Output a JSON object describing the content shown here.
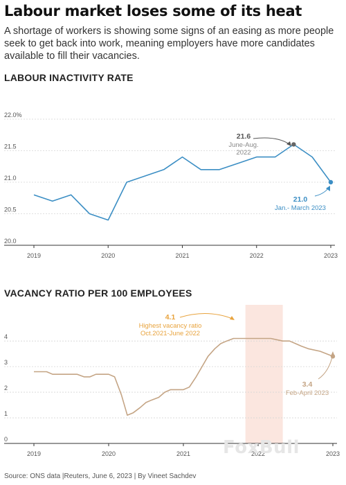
{
  "headline": "Labour market loses some of its heat",
  "dek": "A shortage of workers is showing some signs of an easing as more people seek to get back into work, meaning employers have more candidates available to fill their vacancies.",
  "source": "Source: ONS data |Reuters, June 6, 2023 | By Vineet Sachdev",
  "watermark": "FoxBull",
  "colors": {
    "inactivity_line": "#3b8ec4",
    "vacancy_line": "#c4a484",
    "highlight_band": "#fbe6df",
    "highlight_annotation": "#e8a33d",
    "peak_dot": "#666666"
  },
  "chart_data": [
    {
      "type": "line",
      "title": "LABOUR INACTIVITY RATE",
      "xlabel": "",
      "ylabel": "",
      "x_tick_labels": [
        "2019",
        "2020",
        "2021",
        "2022",
        "2023"
      ],
      "y_tick_labels": [
        "22.0%",
        "21.5",
        "21.0",
        "20.5",
        "20.0"
      ],
      "y_ticks": [
        22.0,
        21.5,
        21.0,
        20.5,
        20.0
      ],
      "ylim": [
        20.0,
        22.0
      ],
      "xlim": [
        2019,
        2023
      ],
      "grid": "horizontal",
      "series": [
        {
          "x": [
            2019.0,
            2019.25,
            2019.5,
            2019.75,
            2020.0,
            2020.25,
            2020.5,
            2020.75,
            2021.0,
            2021.25,
            2021.5,
            2021.75,
            2022.0,
            2022.25,
            2022.5,
            2022.75,
            2023.0
          ],
          "values": [
            20.8,
            20.7,
            20.8,
            20.5,
            20.4,
            21.0,
            21.1,
            21.2,
            21.4,
            21.2,
            21.2,
            21.3,
            21.4,
            21.4,
            21.6,
            21.4,
            21.0
          ]
        }
      ],
      "annotations": [
        {
          "value": "21.6",
          "label_lines": [
            "June-Aug.",
            "2022"
          ],
          "x": 2022.5,
          "y": 21.6
        },
        {
          "value": "21.0",
          "label_lines": [
            "Jan.- March 2023"
          ],
          "x": 2023.0,
          "y": 21.0
        }
      ]
    },
    {
      "type": "line",
      "title": "VACANCY RATIO PER 100 EMPLOYEES",
      "xlabel": "",
      "ylabel": "",
      "x_tick_labels": [
        "2019",
        "2020",
        "2021",
        "2022",
        "2023"
      ],
      "y_tick_labels": [
        "4",
        "3",
        "2",
        "1",
        "0"
      ],
      "y_ticks": [
        4,
        3,
        2,
        1,
        0
      ],
      "ylim": [
        0,
        4.6
      ],
      "xlim": [
        2019,
        2023
      ],
      "grid": "horizontal",
      "highlight_range": [
        2021.83,
        2022.33
      ],
      "series": [
        {
          "x": [
            2019.0,
            2019.17,
            2019.25,
            2019.42,
            2019.58,
            2019.67,
            2019.75,
            2019.83,
            2020.0,
            2020.08,
            2020.17,
            2020.25,
            2020.33,
            2020.42,
            2020.5,
            2020.58,
            2020.67,
            2020.75,
            2020.83,
            2021.0,
            2021.08,
            2021.17,
            2021.25,
            2021.33,
            2021.42,
            2021.5,
            2021.58,
            2021.67,
            2021.75,
            2021.83,
            2022.0,
            2022.17,
            2022.33,
            2022.42,
            2022.5,
            2022.58,
            2022.67,
            2022.83,
            2023.0
          ],
          "values": [
            2.8,
            2.8,
            2.7,
            2.7,
            2.7,
            2.6,
            2.6,
            2.7,
            2.7,
            2.6,
            1.9,
            1.1,
            1.2,
            1.4,
            1.6,
            1.7,
            1.8,
            2.0,
            2.1,
            2.1,
            2.2,
            2.6,
            3.0,
            3.4,
            3.7,
            3.9,
            4.0,
            4.1,
            4.1,
            4.1,
            4.1,
            4.1,
            4.0,
            4.0,
            3.9,
            3.8,
            3.7,
            3.6,
            3.4
          ]
        }
      ],
      "annotations": [
        {
          "value": "4.1",
          "label_lines": [
            "Highest vacancy ratio",
            "Oct.2021-June 2022"
          ],
          "x": 2022.0,
          "y": 4.1
        },
        {
          "value": "3.4",
          "label_lines": [
            "Feb-April 2023"
          ],
          "x": 2023.0,
          "y": 3.4
        }
      ]
    }
  ]
}
